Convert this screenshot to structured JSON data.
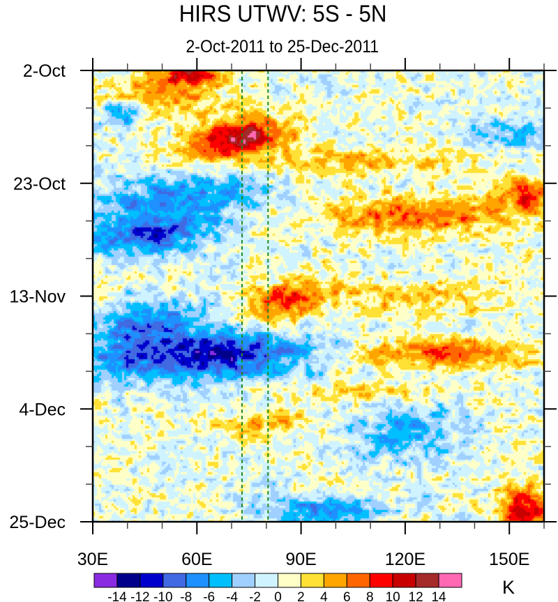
{
  "chart_data": {
    "type": "heatmap",
    "subtype": "filled-contour hovmoller",
    "title": "HIRS UTWV: 5S - 5N",
    "subtitle": "2-Oct-2011 to 25-Dec-2011",
    "xlabel": "",
    "ylabel": "",
    "x_axis": {
      "range_deg_east": [
        30,
        160
      ],
      "major_ticks": [
        30,
        60,
        90,
        120,
        150
      ],
      "tick_labels": [
        "30E",
        "60E",
        "90E",
        "120E",
        "150E"
      ],
      "minor_tick_step_deg": 10
    },
    "y_axis": {
      "range_days_since_2_oct": [
        0,
        84
      ],
      "direction": "time increases downward",
      "major_ticks_days": [
        0,
        21,
        42,
        63,
        84
      ],
      "tick_labels": [
        "2-Oct",
        "23-Oct",
        "13-Nov",
        "4-Dec",
        "25-Dec"
      ],
      "minor_tick_step_days": 7
    },
    "reference_lines": [
      {
        "type": "vertical dashed",
        "x_deg_east": 73,
        "color": "#228B22"
      },
      {
        "type": "vertical dashed",
        "x_deg_east": 80.5,
        "color": "#228B22"
      }
    ],
    "colorbar": {
      "unit": "K",
      "levels": [
        -14,
        -12,
        -10,
        -8,
        -6,
        -4,
        -2,
        0,
        2,
        4,
        6,
        8,
        10,
        12,
        14
      ],
      "colors": [
        "#8a2be2",
        "#00008b",
        "#0000cd",
        "#4169e1",
        "#1e90ff",
        "#00bfff",
        "#a0d0ff",
        "#d0f4ff",
        "#ffffc8",
        "#ffe135",
        "#ffa500",
        "#ff6600",
        "#ff0000",
        "#c80000",
        "#a52a2a",
        "#ff69b4"
      ],
      "placement": "bottom"
    },
    "features": [
      {
        "desc": "warm anomaly max",
        "x_deg_east": [
          60,
          85
        ],
        "day": [
          10,
          17
        ],
        "value_K": 12
      },
      {
        "desc": "warm anomaly",
        "x_deg_east": [
          55,
          62
        ],
        "day": [
          0,
          2
        ],
        "value_K": 10
      },
      {
        "desc": "cold anomaly band (eastward-propagating)",
        "x_deg_east": [
          30,
          90
        ],
        "day": [
          17,
          35
        ],
        "value_K": -8
      },
      {
        "desc": "cold anomaly max",
        "x_deg_east": [
          35,
          82
        ],
        "day": [
          50,
          56
        ],
        "value_K": -12
      },
      {
        "desc": "warm anomaly",
        "x_deg_east": [
          72,
          95
        ],
        "day": [
          40,
          48
        ],
        "value_K": 8
      },
      {
        "desc": "warm anomaly",
        "x_deg_east": [
          125,
          160
        ],
        "day": [
          22,
          30
        ],
        "value_K": 8
      },
      {
        "desc": "warm anomaly",
        "x_deg_east": [
          100,
          150
        ],
        "day": [
          50,
          55
        ],
        "value_K": 8
      },
      {
        "desc": "warm anomaly",
        "x_deg_east": [
          150,
          160
        ],
        "day": [
          78,
          84
        ],
        "value_K": 10
      }
    ],
    "grid": false,
    "legend": "none"
  }
}
